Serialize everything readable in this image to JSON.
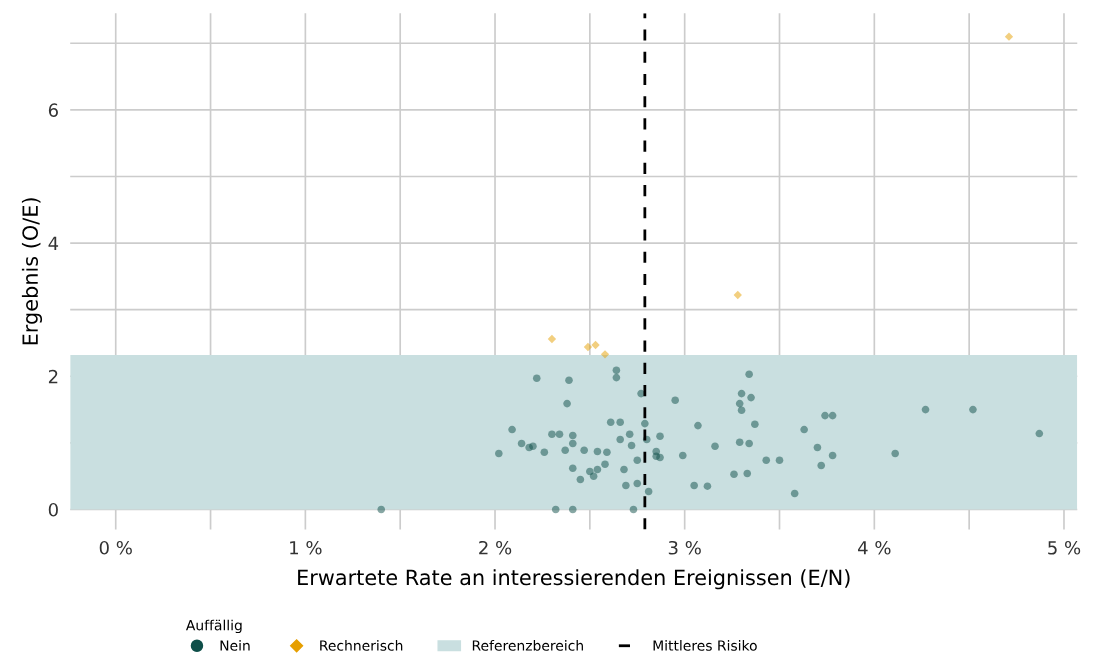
{
  "chart_data": {
    "type": "scatter",
    "xlabel": "Erwartete Rate an interessierenden Ereignissen (E/N)",
    "ylabel": "Ergebnis (O/E)",
    "legend_title": "Auffällig",
    "legend": "bottom",
    "grid": true,
    "xlim": [
      -0.24,
      5.07
    ],
    "ylim": [
      -0.3,
      7.45
    ],
    "xticks": [
      {
        "value": 0,
        "label": "0 %"
      },
      {
        "value": 0.5,
        "label": null
      },
      {
        "value": 1,
        "label": "1 %"
      },
      {
        "value": 1.5,
        "label": null
      },
      {
        "value": 2,
        "label": "2 %"
      },
      {
        "value": 2.5,
        "label": null
      },
      {
        "value": 3,
        "label": "3 %"
      },
      {
        "value": 3.5,
        "label": null
      },
      {
        "value": 4,
        "label": "4 %"
      },
      {
        "value": 4.5,
        "label": null
      },
      {
        "value": 5,
        "label": "5 %"
      }
    ],
    "yticks": [
      0,
      {
        "value": 1,
        "label": null
      },
      2,
      {
        "value": 3,
        "label": null
      },
      4,
      {
        "value": 5,
        "label": null
      },
      6,
      {
        "value": 7,
        "label": null
      }
    ],
    "series": [
      {
        "name": "Nein",
        "color": "#0f4f49",
        "marker": "circle",
        "x": [
          1.4,
          2.02,
          2.09,
          2.14,
          2.18,
          2.2,
          2.22,
          2.26,
          2.3,
          2.32,
          2.34,
          2.37,
          2.38,
          2.39,
          2.41,
          2.41,
          2.41,
          2.41,
          2.45,
          2.47,
          2.5,
          2.52,
          2.54,
          2.54,
          2.58,
          2.59,
          2.61,
          2.64,
          2.64,
          2.66,
          2.66,
          2.68,
          2.69,
          2.71,
          2.72,
          2.73,
          2.75,
          2.75,
          2.77,
          2.79,
          2.8,
          2.81,
          2.85,
          2.85,
          2.87,
          2.87,
          2.95,
          2.99,
          3.05,
          3.07,
          3.12,
          3.16,
          3.26,
          3.29,
          3.29,
          3.3,
          3.3,
          3.33,
          3.34,
          3.34,
          3.35,
          3.37,
          3.43,
          3.5,
          3.58,
          3.63,
          3.7,
          3.72,
          3.74,
          3.78,
          3.78,
          4.11,
          4.27,
          4.52,
          4.87
        ],
        "values": [
          0.0,
          0.84,
          1.2,
          0.99,
          0.93,
          0.95,
          1.97,
          0.86,
          1.13,
          0.0,
          1.13,
          0.89,
          1.59,
          1.94,
          0.0,
          1.11,
          0.99,
          0.62,
          0.45,
          0.89,
          0.57,
          0.5,
          0.6,
          0.87,
          0.68,
          0.86,
          1.31,
          2.09,
          1.98,
          1.31,
          1.05,
          0.6,
          0.36,
          1.13,
          0.96,
          0.0,
          0.74,
          0.39,
          1.74,
          1.29,
          1.05,
          0.27,
          0.87,
          0.8,
          0.78,
          1.1,
          1.64,
          0.81,
          0.36,
          1.26,
          0.35,
          0.95,
          0.53,
          1.59,
          1.01,
          1.74,
          1.49,
          0.54,
          2.03,
          0.99,
          1.68,
          1.28,
          0.74,
          0.74,
          0.24,
          1.2,
          0.93,
          0.66,
          1.41,
          1.41,
          0.81,
          0.84,
          1.5,
          1.5,
          1.14
        ]
      },
      {
        "name": "Rechnerisch",
        "color": "#e69f00",
        "marker": "diamond",
        "x": [
          2.3,
          2.49,
          2.53,
          2.58,
          3.28,
          4.71
        ],
        "values": [
          2.56,
          2.44,
          2.47,
          2.33,
          3.22,
          7.1
        ]
      }
    ],
    "bands": [
      {
        "axis": "y",
        "from": 0,
        "to": 2.32,
        "label": "Referenzbereich",
        "color": "#c9dfe0"
      }
    ],
    "ref_lines": [
      {
        "axis": "x",
        "value": 2.79,
        "label": "Mittleres Risiko",
        "color": "#000000",
        "line_style": "dashed"
      }
    ]
  }
}
